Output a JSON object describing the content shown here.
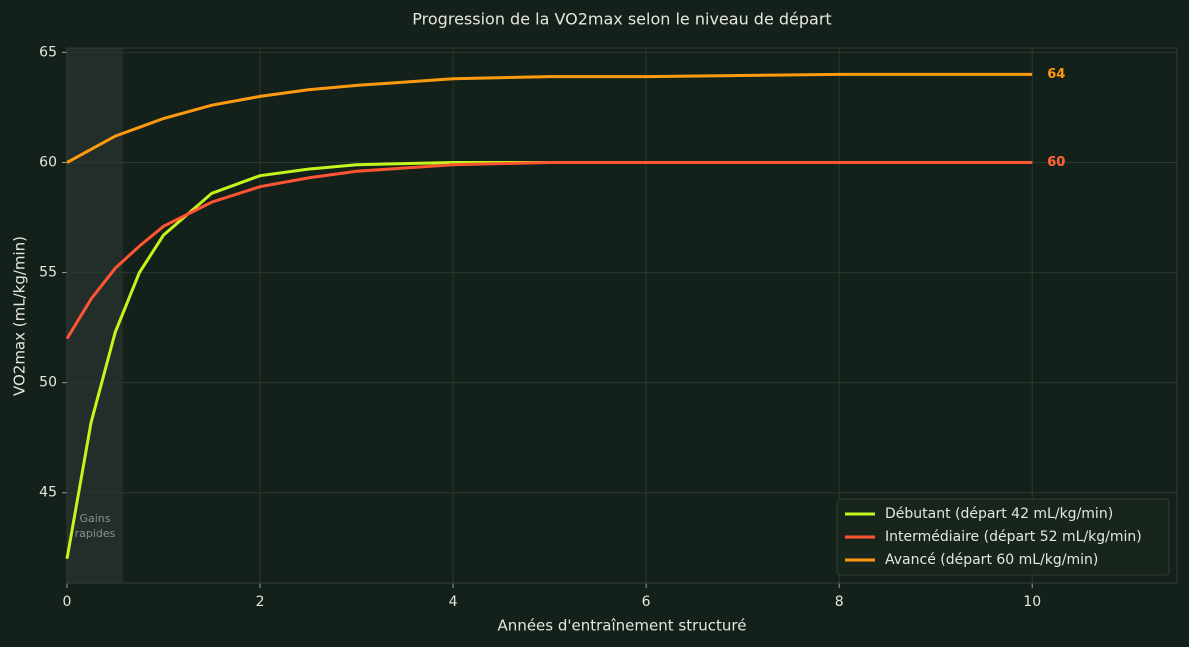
{
  "chart_data": {
    "type": "line",
    "title": "Progression de la VO2max selon le niveau de départ",
    "x_label": "Années d'entraînement structuré",
    "y_label": "VO2max (mL/kg/min)",
    "x": [
      0,
      0.25,
      0.5,
      0.75,
      1,
      1.5,
      2,
      2.5,
      3,
      4,
      5,
      6,
      8,
      10
    ],
    "series": [
      {
        "name": "Débutant (départ 42 mL/kg/min)",
        "color": "#c4f51c",
        "end_label": 60,
        "values": [
          42,
          48.2,
          52.3,
          55.0,
          56.7,
          58.6,
          59.4,
          59.7,
          59.9,
          60.0,
          60,
          60,
          60,
          60
        ]
      },
      {
        "name": "Intermédiaire (départ 52 mL/kg/min)",
        "color": "#ff5533",
        "end_label": 60,
        "values": [
          52,
          53.8,
          55.2,
          56.2,
          57.1,
          58.2,
          58.9,
          59.3,
          59.6,
          59.9,
          60.0,
          60.0,
          60,
          60
        ]
      },
      {
        "name": "Avancé (départ 60 mL/kg/min)",
        "color": "#ff9a10",
        "end_label": 64,
        "values": [
          60,
          60.6,
          61.2,
          61.6,
          62.0,
          62.6,
          63.0,
          63.3,
          63.5,
          63.8,
          63.9,
          63.9,
          64.0,
          64
        ]
      }
    ],
    "highlight": {
      "x": [
        0,
        0.58
      ],
      "label_lines": [
        "Gains",
        "rapides"
      ]
    },
    "xlim": [
      0,
      11.5
    ],
    "ylim": [
      40.9,
      65.2
    ],
    "xticks": [
      0,
      2,
      4,
      6,
      8,
      10
    ],
    "yticks": [
      45,
      50,
      55,
      60,
      65
    ],
    "grid": true,
    "legend": "lower right"
  }
}
